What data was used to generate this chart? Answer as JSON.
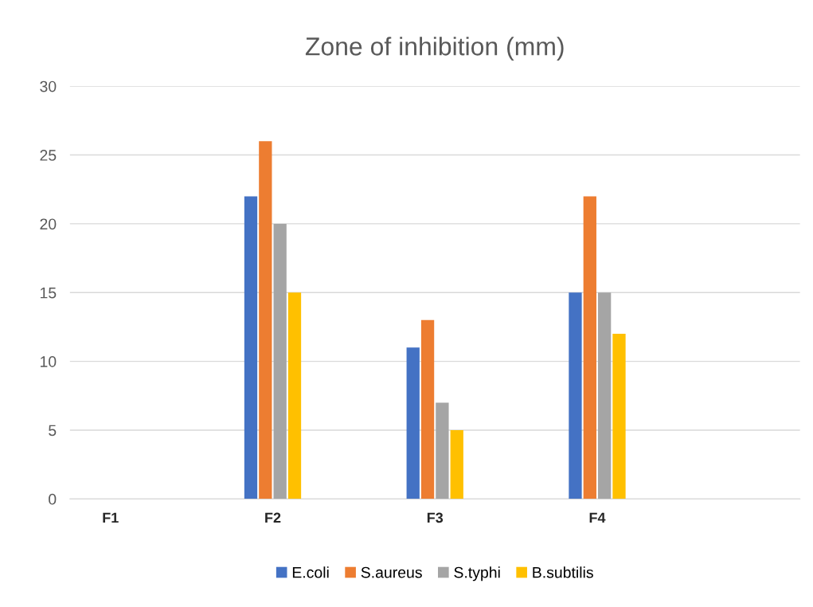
{
  "chart_data": {
    "type": "bar",
    "title": "Zone of inhibition (mm)",
    "categories": [
      "F1",
      "F2",
      "F3",
      "F4",
      null
    ],
    "series": [
      {
        "name": "E.coli",
        "color": "#4472c4",
        "values": [
          null,
          22,
          11,
          15,
          null
        ]
      },
      {
        "name": "S.aureus",
        "color": "#ed7d31",
        "values": [
          null,
          26,
          13,
          22,
          null
        ]
      },
      {
        "name": "S.typhi",
        "color": "#a5a5a5",
        "values": [
          null,
          20,
          7,
          15,
          null
        ]
      },
      {
        "name": "B.subtilis",
        "color": "#ffc000",
        "values": [
          null,
          15,
          5,
          12,
          null
        ]
      }
    ],
    "ylim": [
      0,
      30
    ],
    "yticks": [
      0,
      5,
      10,
      15,
      20,
      25,
      30
    ],
    "grid": "y",
    "legend": "bottom"
  }
}
